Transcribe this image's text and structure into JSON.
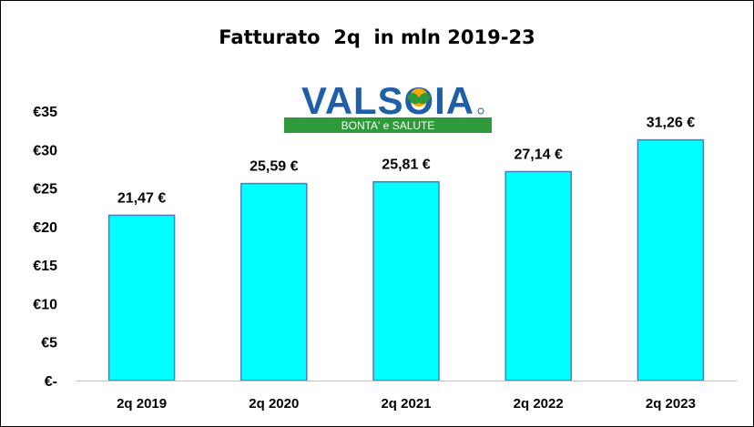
{
  "chart_data": {
    "type": "bar",
    "title": "Fatturato  2q  in mln 2019-23",
    "categories": [
      "2q 2019",
      "2q 2020",
      "2q 2021",
      "2q 2022",
      "2q 2023"
    ],
    "values": [
      21.47,
      25.59,
      25.81,
      27.14,
      31.26
    ],
    "data_labels": [
      "21,47 €",
      "25,59 €",
      "25,81 €",
      "27,14 €",
      "31,26 €"
    ],
    "y_ticks": [
      {
        "value": 0,
        "label": "€-"
      },
      {
        "value": 5,
        "label": "€5"
      },
      {
        "value": 10,
        "label": "€10"
      },
      {
        "value": 15,
        "label": "€15"
      },
      {
        "value": 20,
        "label": "€20"
      },
      {
        "value": 25,
        "label": "€25"
      },
      {
        "value": 30,
        "label": "€30"
      },
      {
        "value": 35,
        "label": "€35"
      }
    ],
    "ylim": [
      0,
      35
    ],
    "grid": false,
    "legend": "none",
    "bar_color": "#00FFFF",
    "bar_edge_color": "#4A7EBB"
  },
  "logo": {
    "brand": "VALSOIA",
    "tagline": "BONTA' e SALUTE",
    "brand_color": "#1F5FA8",
    "band_color": "#2E9A3A"
  }
}
